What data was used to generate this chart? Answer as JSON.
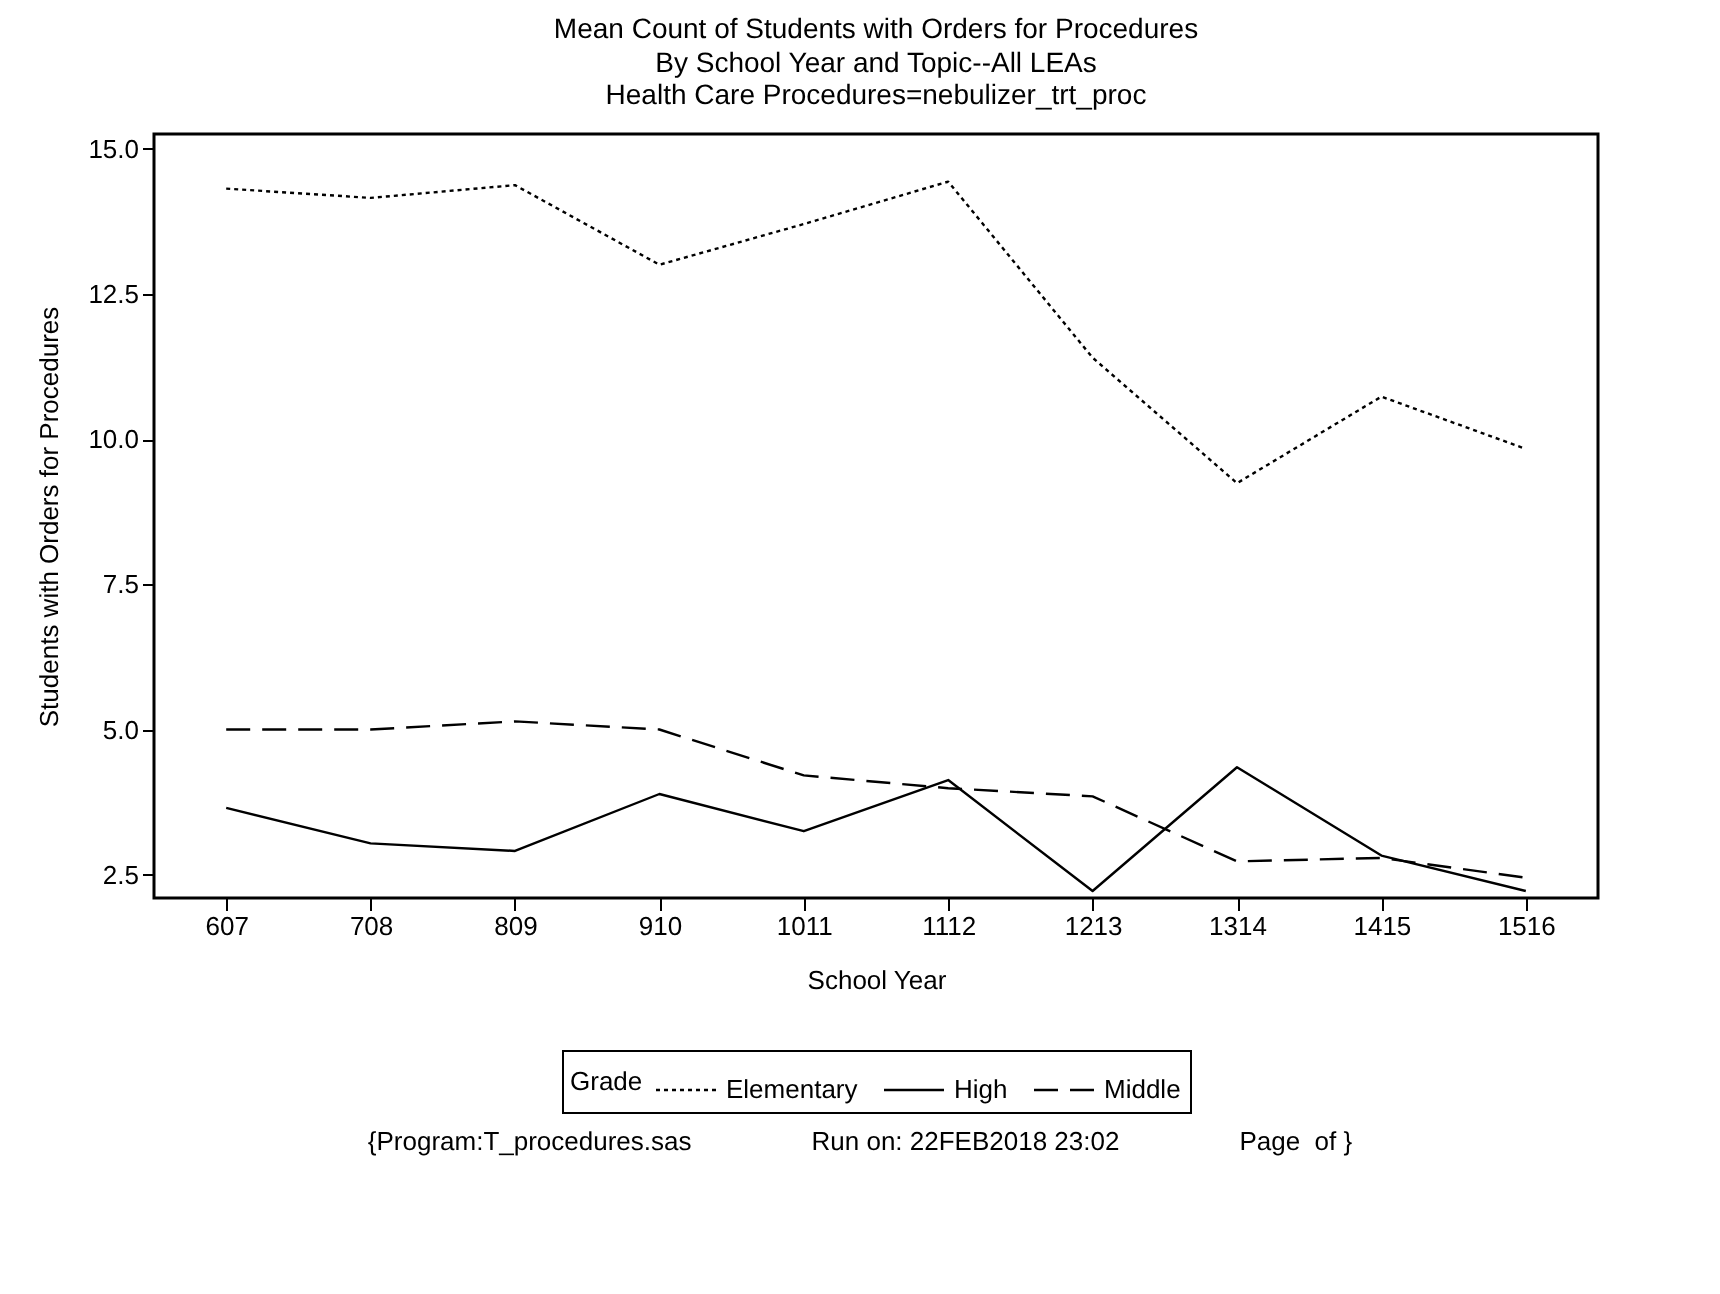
{
  "chart_data": {
    "type": "line",
    "title": "Mean Count of Students with Orders for Procedures",
    "subtitle": "By School Year and Topic--All LEAs\nHealth Care Procedures=nebulizer_trt_proc",
    "xlabel": "School Year",
    "ylabel": "Students with Orders for Procedures",
    "legend_title": "Grade",
    "categories": [
      "607",
      "708",
      "809",
      "910",
      "1011",
      "1112",
      "1213",
      "1314",
      "1415",
      "1516"
    ],
    "series": [
      {
        "name": "Elementary",
        "color": "#000000",
        "line_style": "dotted",
        "values": [
          14.31,
          14.15,
          14.37,
          13.0,
          13.7,
          14.43,
          11.4,
          9.24,
          10.73,
          9.83
        ]
      },
      {
        "name": "High",
        "color": "#000000",
        "line_style": "solid",
        "values": [
          3.65,
          3.04,
          2.91,
          3.89,
          3.25,
          4.13,
          2.22,
          4.35,
          2.83,
          2.22
        ]
      },
      {
        "name": "Middle",
        "color": "#000000",
        "line_style": "dashed",
        "values": [
          5.0,
          5.0,
          5.14,
          5.0,
          4.21,
          3.99,
          3.85,
          2.73,
          2.79,
          2.45
        ]
      }
    ],
    "ylim": [
      2.1,
      15.25
    ],
    "yticks": [
      {
        "value": 2.5,
        "label": "2.5"
      },
      {
        "value": 5,
        "label": "5.0"
      },
      {
        "value": 7.5,
        "label": "7.5"
      },
      {
        "value": 10,
        "label": "10.0"
      },
      {
        "value": 12.5,
        "label": "12.5"
      },
      {
        "value": 15,
        "label": "15.0"
      }
    ],
    "grid": false,
    "legend": "bottom",
    "marker": "none",
    "annotations": [
      "{Program:T_procedures.sas",
      "Run on: 22FEB2018 23:02",
      "Page  of }"
    ]
  }
}
